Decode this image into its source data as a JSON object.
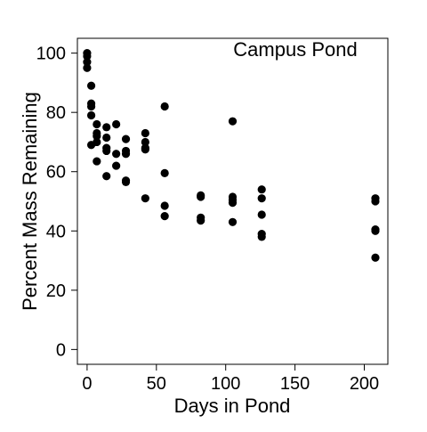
{
  "chart_data": {
    "type": "scatter",
    "title": "Campus Pond",
    "xlabel": "Days in Pond",
    "ylabel": "Percent Mass Remaining",
    "xlim": [
      -7,
      217
    ],
    "ylim": [
      -5,
      105
    ],
    "xticks": [
      0,
      50,
      100,
      150,
      200
    ],
    "yticks": [
      0,
      20,
      40,
      60,
      80,
      100
    ],
    "grid": false,
    "legend": "none",
    "marker_color": "#000000",
    "series": [
      {
        "points": [
          [
            0,
            100
          ],
          [
            0,
            99
          ],
          [
            0,
            97
          ],
          [
            0,
            95
          ],
          [
            3,
            89
          ],
          [
            3,
            83
          ],
          [
            3,
            82
          ],
          [
            3,
            79
          ],
          [
            3,
            69
          ],
          [
            7,
            76
          ],
          [
            7,
            73
          ],
          [
            7,
            72
          ],
          [
            7,
            70
          ],
          [
            7,
            63.5
          ],
          [
            14,
            75
          ],
          [
            14,
            71.5
          ],
          [
            14,
            68
          ],
          [
            14,
            67
          ],
          [
            14,
            58.5
          ],
          [
            21,
            76
          ],
          [
            21,
            66
          ],
          [
            21,
            62
          ],
          [
            28,
            71
          ],
          [
            28,
            67
          ],
          [
            28,
            66
          ],
          [
            28,
            57
          ],
          [
            28,
            56.5
          ],
          [
            42,
            73
          ],
          [
            42,
            70
          ],
          [
            42,
            68
          ],
          [
            42,
            67.5
          ],
          [
            42,
            51
          ],
          [
            56,
            82
          ],
          [
            56,
            59.5
          ],
          [
            56,
            48.5
          ],
          [
            56,
            45
          ],
          [
            82,
            52
          ],
          [
            82,
            51.5
          ],
          [
            82,
            44.5
          ],
          [
            82,
            43.5
          ],
          [
            105,
            77
          ],
          [
            105,
            51.5
          ],
          [
            105,
            50.5
          ],
          [
            105,
            49.5
          ],
          [
            105,
            43
          ],
          [
            126,
            54
          ],
          [
            126,
            51
          ],
          [
            126,
            45.5
          ],
          [
            126,
            39
          ],
          [
            126,
            38
          ],
          [
            208,
            51
          ],
          [
            208,
            50
          ],
          [
            208,
            40.5
          ],
          [
            208,
            40
          ],
          [
            208,
            31
          ]
        ]
      }
    ]
  }
}
